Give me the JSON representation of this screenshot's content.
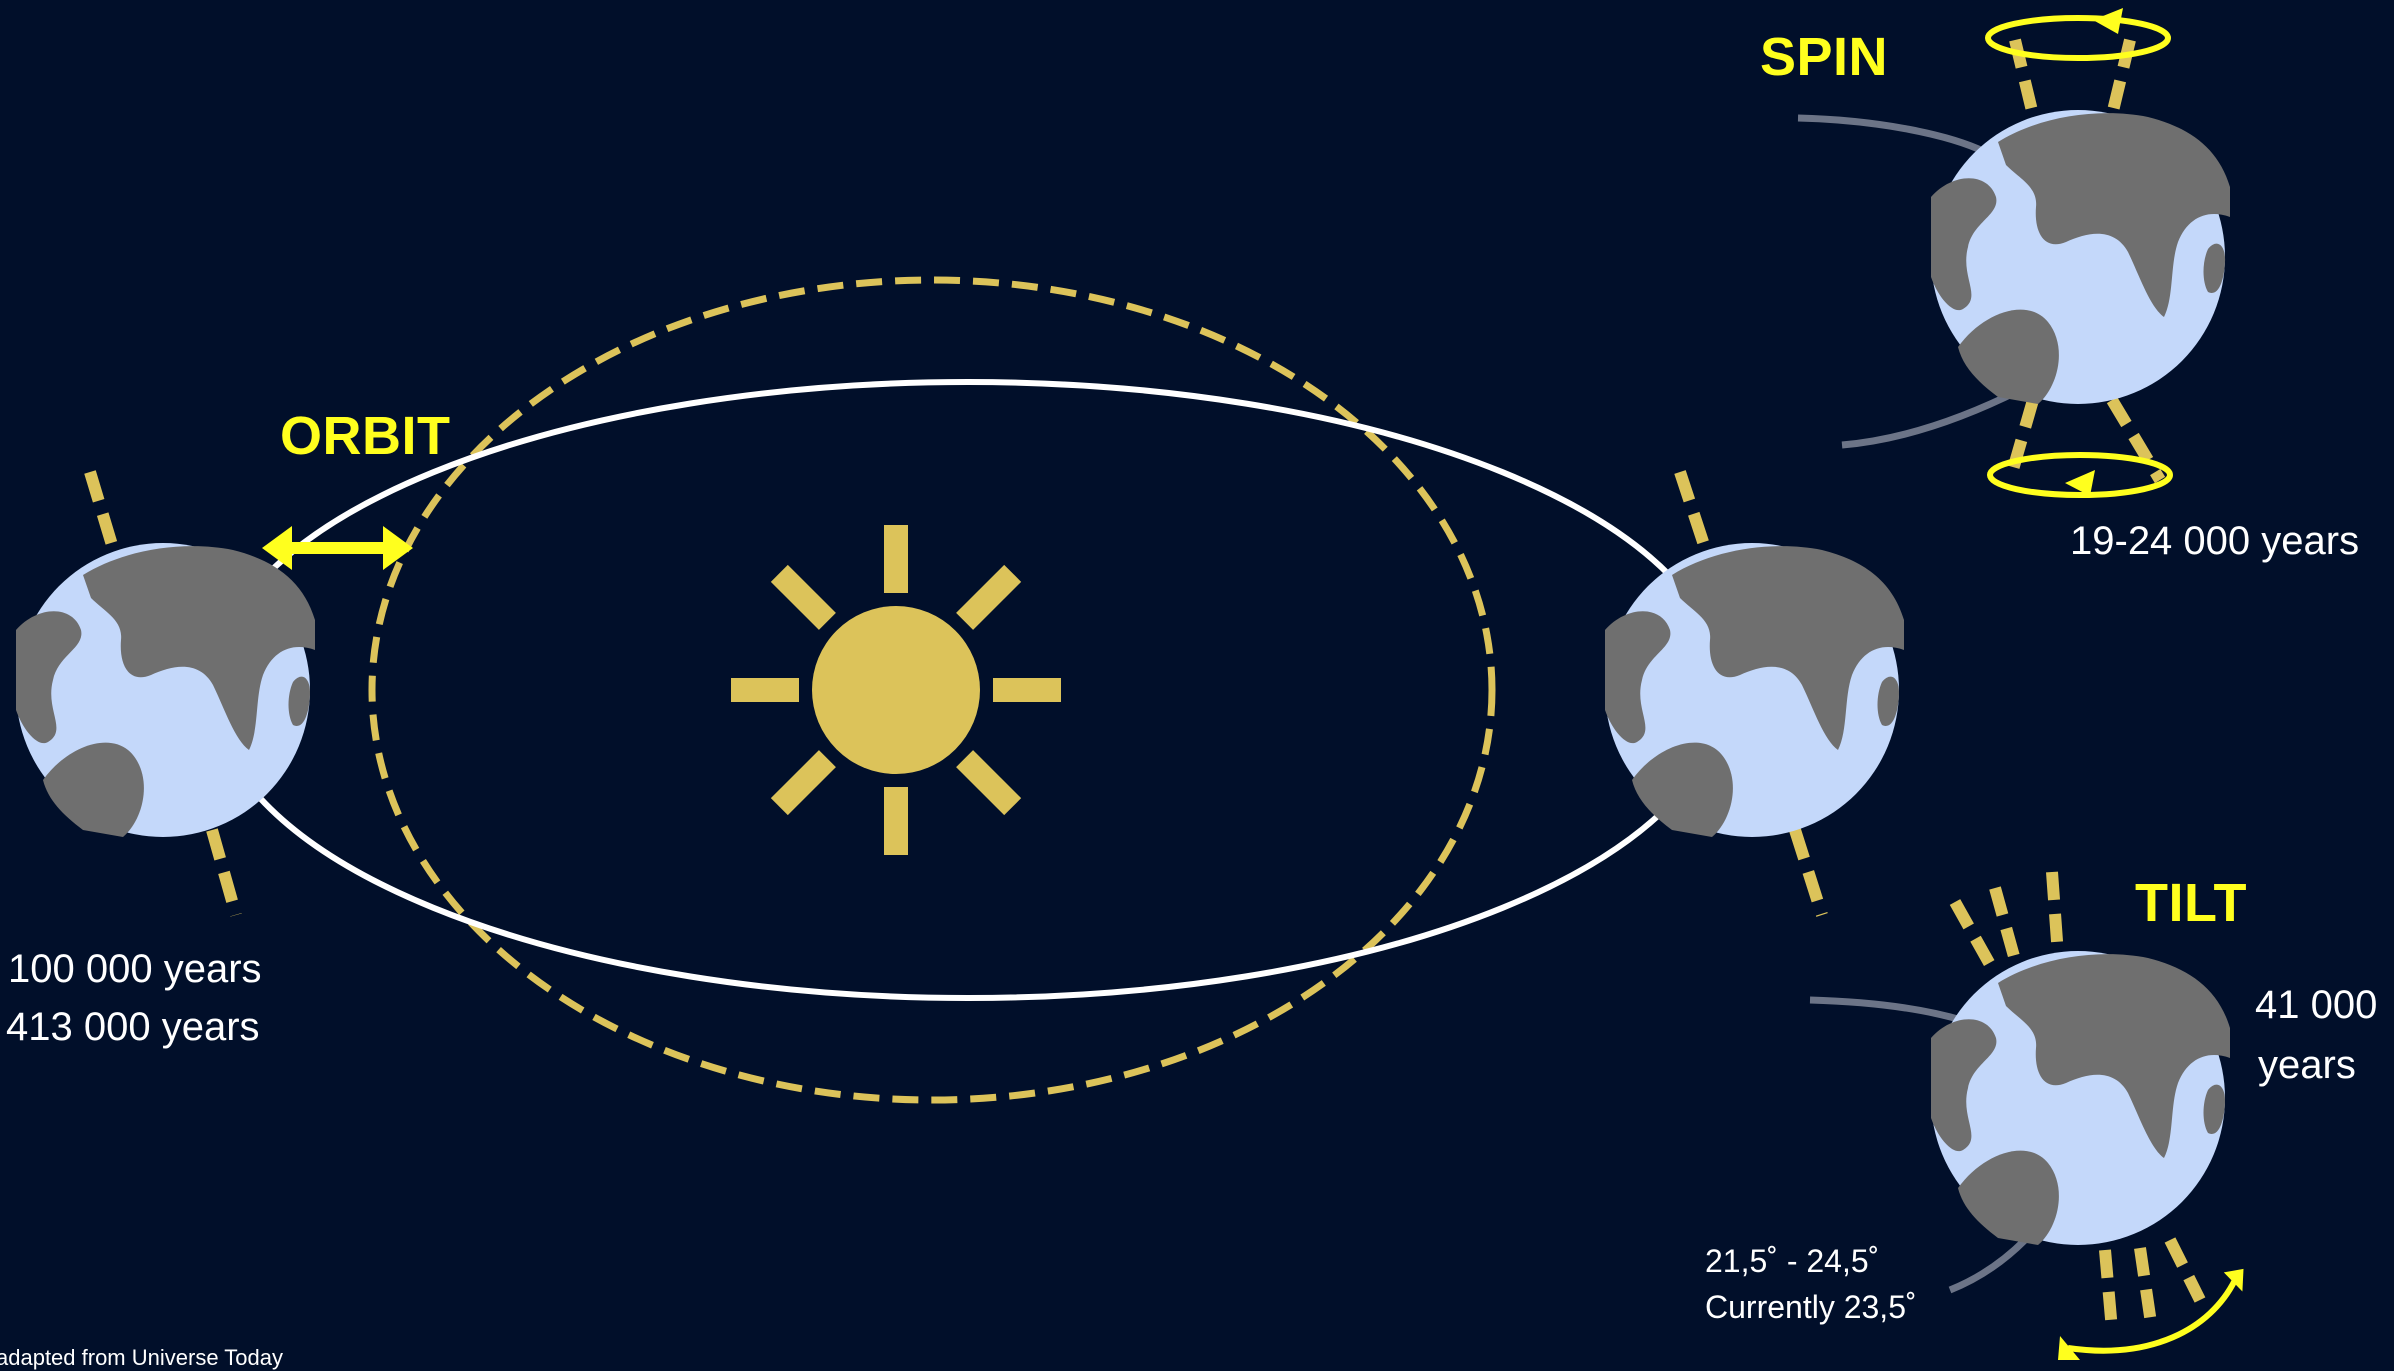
{
  "diagram": {
    "colors": {
      "background": "#010f2a",
      "sun": "#dcc35a",
      "highlight": "#ffff1e",
      "orbit_current": "#ffffff",
      "orbit_alternate": "#dcc35a",
      "earth_ocean": "#c4d8fa",
      "earth_land": "#6f6f6f",
      "trail": "#6c7487"
    },
    "orbit": {
      "title": "ORBIT",
      "period_1": "100 000 years",
      "period_2": "413 000 years"
    },
    "spin": {
      "title": "SPIN",
      "period": "19-24 000 years"
    },
    "tilt": {
      "title": "TILT",
      "period_1": "41 000",
      "period_2": "years",
      "range": "21,5˚ - 24,5˚",
      "current": "Currently 23,5˚"
    },
    "credit": "adapted from Universe Today"
  }
}
